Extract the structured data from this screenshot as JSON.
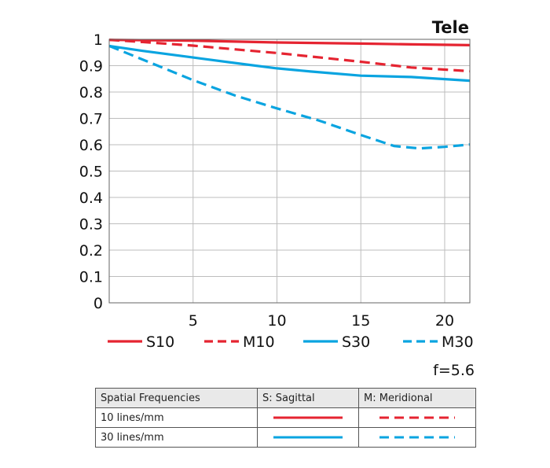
{
  "chart_data": {
    "type": "line",
    "title": "Tele",
    "aperture": "f=5.6",
    "xlabel": "",
    "ylabel": "",
    "xlim": [
      0,
      21.5
    ],
    "ylim": [
      0,
      1
    ],
    "x_ticks": [
      5,
      10,
      15,
      20
    ],
    "y_ticks": [
      0,
      0.1,
      0.2,
      0.3,
      0.4,
      0.5,
      0.6,
      0.7,
      0.8,
      0.9,
      1
    ],
    "y_tick_labels": [
      "0",
      "0.1",
      "0.2",
      "0.3",
      "0.4",
      "0.5",
      "0.6",
      "0.7",
      "0.8",
      "0.9",
      "1"
    ],
    "grid": true,
    "series": [
      {
        "name": "S10",
        "color": "#e52431",
        "style": "solid",
        "x": [
          0,
          5,
          10,
          15,
          18,
          21.5
        ],
        "y": [
          0.998,
          0.995,
          0.988,
          0.984,
          0.981,
          0.978
        ]
      },
      {
        "name": "M10",
        "color": "#e52431",
        "style": "dashed",
        "x": [
          0,
          2,
          5,
          8,
          10,
          12,
          15,
          18,
          21.5
        ],
        "y": [
          0.998,
          0.99,
          0.976,
          0.959,
          0.948,
          0.935,
          0.915,
          0.893,
          0.879
        ]
      },
      {
        "name": "S30",
        "color": "#0aa4e0",
        "style": "solid",
        "x": [
          0,
          2,
          5,
          8,
          10,
          12,
          15,
          18,
          21.5
        ],
        "y": [
          0.975,
          0.956,
          0.931,
          0.906,
          0.89,
          0.878,
          0.862,
          0.857,
          0.843
        ]
      },
      {
        "name": "M30",
        "color": "#0aa4e0",
        "style": "dashed",
        "x": [
          0,
          2.5,
          5,
          7.5,
          10,
          12.5,
          15,
          17,
          18.5,
          20,
          21.5
        ],
        "y": [
          0.975,
          0.91,
          0.845,
          0.787,
          0.738,
          0.692,
          0.637,
          0.595,
          0.586,
          0.592,
          0.601
        ]
      }
    ]
  },
  "legend_table": {
    "header": {
      "col1": "Spatial Frequencies",
      "col2": "S: Sagittal",
      "col3": "M: Meridional"
    },
    "rows": [
      {
        "label": "10 lines/mm",
        "color": "#e52431"
      },
      {
        "label": "30 lines/mm",
        "color": "#0aa4e0"
      }
    ]
  }
}
